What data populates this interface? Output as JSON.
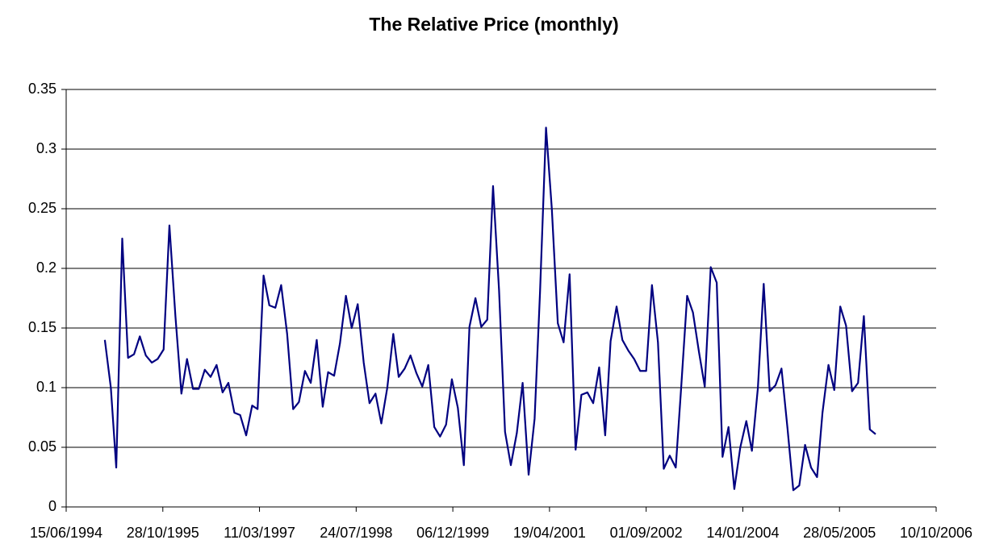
{
  "chart_data": {
    "type": "line",
    "title": "The Relative Price (monthly)",
    "x": [
      "01/01/1995",
      "01/02/1995",
      "01/03/1995",
      "01/04/1995",
      "01/05/1995",
      "01/06/1995",
      "01/07/1995",
      "01/08/1995",
      "01/09/1995",
      "01/10/1995",
      "01/11/1995",
      "01/12/1995",
      "01/01/1996",
      "01/02/1996",
      "01/03/1996",
      "01/04/1996",
      "01/05/1996",
      "01/06/1996",
      "01/07/1996",
      "01/08/1996",
      "01/09/1996",
      "01/10/1996",
      "01/11/1996",
      "01/12/1996",
      "01/01/1997",
      "01/02/1997",
      "01/03/1997",
      "01/04/1997",
      "01/05/1997",
      "01/06/1997",
      "01/07/1997",
      "01/08/1997",
      "01/09/1997",
      "01/10/1997",
      "01/11/1997",
      "01/12/1997",
      "01/01/1998",
      "01/02/1998",
      "01/03/1998",
      "01/04/1998",
      "01/05/1998",
      "01/06/1998",
      "01/07/1998",
      "01/08/1998",
      "01/09/1998",
      "01/10/1998",
      "01/11/1998",
      "01/12/1998",
      "01/01/1999",
      "01/02/1999",
      "01/03/1999",
      "01/04/1999",
      "01/05/1999",
      "01/06/1999",
      "01/07/1999",
      "01/08/1999",
      "01/09/1999",
      "01/10/1999",
      "01/11/1999",
      "01/12/1999",
      "01/01/2000",
      "01/02/2000",
      "01/03/2000",
      "01/04/2000",
      "01/05/2000",
      "01/06/2000",
      "01/07/2000",
      "01/08/2000",
      "01/09/2000",
      "01/10/2000",
      "01/11/2000",
      "01/12/2000",
      "01/01/2001",
      "01/02/2001",
      "01/03/2001",
      "01/04/2001",
      "01/05/2001",
      "01/06/2001",
      "01/07/2001",
      "01/08/2001",
      "01/09/2001",
      "01/10/2001",
      "01/11/2001",
      "01/12/2001",
      "01/01/2002",
      "01/02/2002",
      "01/03/2002",
      "01/04/2002",
      "01/05/2002",
      "01/06/2002",
      "01/07/2002",
      "01/08/2002",
      "01/09/2002",
      "01/10/2002",
      "01/11/2002",
      "01/12/2002",
      "01/01/2003",
      "01/02/2003",
      "01/03/2003",
      "01/04/2003",
      "01/05/2003",
      "01/06/2003",
      "01/07/2003",
      "01/08/2003",
      "01/09/2003",
      "01/10/2003",
      "01/11/2003",
      "01/12/2003",
      "01/01/2004",
      "01/02/2004",
      "01/03/2004",
      "01/04/2004",
      "01/05/2004",
      "01/06/2004",
      "01/07/2004",
      "01/08/2004",
      "01/09/2004",
      "01/10/2004",
      "01/11/2004",
      "01/12/2004",
      "01/01/2005",
      "01/02/2005",
      "01/03/2005",
      "01/04/2005",
      "01/05/2005",
      "01/06/2005",
      "01/07/2005",
      "01/08/2005",
      "01/09/2005",
      "01/10/2005",
      "01/11/2005",
      "01/12/2005"
    ],
    "series": [
      {
        "name": "Relative Price",
        "color": "#000080",
        "values": [
          0.14,
          0.1,
          0.033,
          0.225,
          0.125,
          0.128,
          0.143,
          0.127,
          0.121,
          0.124,
          0.132,
          0.236,
          0.16,
          0.095,
          0.124,
          0.099,
          0.099,
          0.115,
          0.109,
          0.119,
          0.096,
          0.104,
          0.079,
          0.077,
          0.06,
          0.085,
          0.082,
          0.194,
          0.169,
          0.167,
          0.186,
          0.145,
          0.082,
          0.088,
          0.114,
          0.104,
          0.14,
          0.084,
          0.113,
          0.11,
          0.137,
          0.177,
          0.15,
          0.17,
          0.121,
          0.087,
          0.095,
          0.07,
          0.1,
          0.145,
          0.109,
          0.116,
          0.127,
          0.112,
          0.101,
          0.119,
          0.067,
          0.059,
          0.069,
          0.107,
          0.083,
          0.035,
          0.151,
          0.175,
          0.151,
          0.157,
          0.269,
          0.182,
          0.063,
          0.035,
          0.062,
          0.104,
          0.027,
          0.074,
          0.18,
          0.318,
          0.25,
          0.154,
          0.138,
          0.195,
          0.048,
          0.094,
          0.096,
          0.087,
          0.117,
          0.06,
          0.139,
          0.168,
          0.14,
          0.131,
          0.124,
          0.114,
          0.114,
          0.186,
          0.138,
          0.032,
          0.043,
          0.033,
          0.1,
          0.177,
          0.163,
          0.13,
          0.101,
          0.201,
          0.188,
          0.042,
          0.067,
          0.015,
          0.05,
          0.072,
          0.047,
          0.1,
          0.187,
          0.097,
          0.102,
          0.116,
          0.066,
          0.014,
          0.018,
          0.052,
          0.033,
          0.025,
          0.079,
          0.119,
          0.098,
          0.168,
          0.152,
          0.097,
          0.104,
          0.16,
          0.065,
          0.061
        ]
      }
    ],
    "xlim": [
      "15/06/1994",
      "10/10/2006"
    ],
    "xticks": [
      "15/06/1994",
      "28/10/1995",
      "11/03/1997",
      "24/07/1998",
      "06/12/1999",
      "19/04/2001",
      "01/09/2002",
      "14/01/2004",
      "28/05/2005",
      "10/10/2006"
    ],
    "ylim": [
      0,
      0.35
    ],
    "yticks": [
      0,
      0.05,
      0.1,
      0.15,
      0.2,
      0.25,
      0.3,
      0.35
    ],
    "grid": true
  }
}
